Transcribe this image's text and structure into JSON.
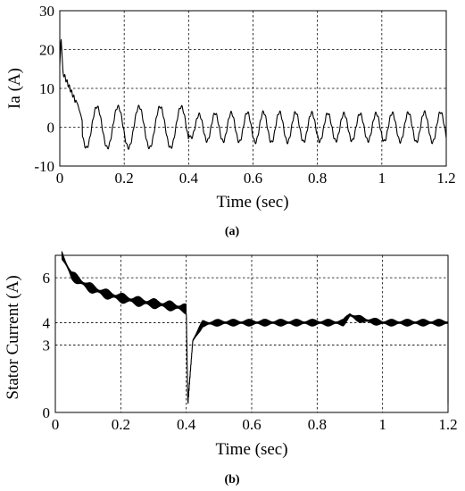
{
  "chart_data": [
    {
      "type": "line",
      "caption": "(a)",
      "title": "",
      "xlabel": "Time (sec)",
      "ylabel": "Ia (A)",
      "xlim": [
        0,
        1.2
      ],
      "ylim": [
        -10,
        30
      ],
      "grid": true,
      "x_ticks": [
        0,
        0.2,
        0.4,
        0.6,
        0.8,
        1,
        1.2
      ],
      "x_tick_labels": [
        "0",
        "0.2",
        "0.4",
        "0.6",
        "0.8",
        "1",
        "1.2"
      ],
      "y_ticks": [
        -10,
        0,
        10,
        20,
        30
      ],
      "y_tick_labels": [
        "-10",
        "0",
        "10",
        "20",
        "30"
      ],
      "series": [
        {
          "x": [
            0,
            0.005,
            0.01,
            0.02,
            0.03,
            0.04,
            0.05,
            0.06,
            0.07,
            0.08,
            0.1,
            0.12,
            0.15,
            0.17,
            0.2,
            0.25,
            0.3,
            0.35,
            0.4,
            0.5,
            0.6,
            0.7,
            0.8,
            0.9,
            1.0,
            1.1,
            1.2
          ],
          "y": [
            16,
            23,
            14,
            9,
            7.5,
            7,
            6,
            3,
            -2,
            -5,
            4,
            -6,
            5,
            -5,
            5,
            -5,
            5,
            -5,
            3,
            4,
            -3,
            4,
            -4,
            3,
            3,
            4,
            -3
          ]
        }
      ]
    },
    {
      "type": "line",
      "caption": "(b)",
      "title": "",
      "xlabel": "Time (sec)",
      "ylabel": "Stator Current (A)",
      "xlim": [
        0,
        1.2
      ],
      "ylim": [
        0,
        7
      ],
      "grid": true,
      "x_ticks": [
        0,
        0.2,
        0.4,
        0.6,
        0.8,
        1,
        1.2
      ],
      "x_tick_labels": [
        "0",
        "0.2",
        "0.4",
        "0.6",
        "0.8",
        "1",
        "1.2"
      ],
      "y_ticks": [
        0,
        3,
        4,
        6
      ],
      "y_tick_labels": [
        "0",
        "3",
        "4",
        "6"
      ],
      "series": [
        {
          "x": [
            0.02,
            0.05,
            0.1,
            0.15,
            0.2,
            0.25,
            0.3,
            0.35,
            0.39,
            0.4,
            0.405,
            0.42,
            0.45,
            0.5,
            0.6,
            0.7,
            0.8,
            0.88,
            0.9,
            0.92,
            0.95,
            1.0,
            1.1,
            1.2
          ],
          "y": [
            7,
            6.1,
            5.6,
            5.3,
            5.1,
            4.95,
            4.85,
            4.75,
            4.65,
            4.6,
            0.4,
            3.2,
            3.95,
            4.0,
            4.0,
            4.0,
            4.0,
            4.0,
            4.35,
            4.2,
            4.1,
            4.0,
            4.0,
            4.0
          ]
        }
      ]
    }
  ]
}
